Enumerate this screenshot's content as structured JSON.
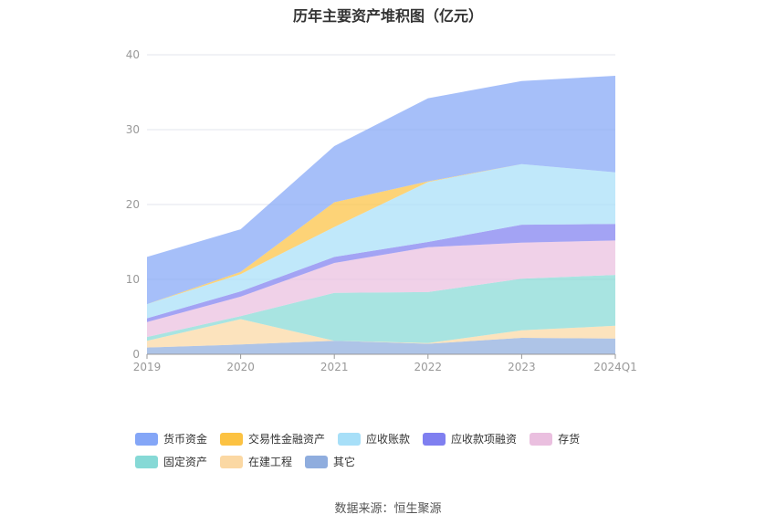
{
  "title": "历年主要资产堆积图（亿元）",
  "source": "数据来源：恒生聚源",
  "chart_data": {
    "type": "area",
    "stacked": true,
    "categories": [
      "2019",
      "2020",
      "2021",
      "2022",
      "2023",
      "2024Q1"
    ],
    "ylim": [
      0,
      40
    ],
    "yticks": [
      0,
      10,
      20,
      30,
      40
    ],
    "grid": true,
    "legend_position": "bottom",
    "series": [
      {
        "name": "其它",
        "color": "#8fadde",
        "values": [
          0.9,
          1.3,
          1.8,
          1.4,
          2.2,
          2.1
        ]
      },
      {
        "name": "在建工程",
        "color": "#fbd8a3",
        "values": [
          0.9,
          3.4,
          0.0,
          0.1,
          1.0,
          1.7
        ]
      },
      {
        "name": "固定资产",
        "color": "#86d9d6",
        "values": [
          0.5,
          0.4,
          6.4,
          6.8,
          6.9,
          6.8
        ]
      },
      {
        "name": "存货",
        "color": "#eabfdf",
        "values": [
          2.0,
          2.6,
          4.0,
          6.0,
          4.8,
          4.6
        ]
      },
      {
        "name": "应收款项融资",
        "color": "#7f7ff0",
        "values": [
          0.5,
          0.7,
          0.8,
          0.7,
          2.4,
          2.2
        ]
      },
      {
        "name": "应收账款",
        "color": "#a7dff8",
        "values": [
          1.9,
          2.3,
          4.0,
          8.0,
          8.1,
          6.9
        ]
      },
      {
        "name": "交易性金融资产",
        "color": "#fcc242",
        "values": [
          0.0,
          0.3,
          3.3,
          0.1,
          0.0,
          0.0
        ]
      },
      {
        "name": "货币资金",
        "color": "#84a6f7",
        "values": [
          6.3,
          5.7,
          7.5,
          11.1,
          11.1,
          12.9
        ]
      }
    ]
  }
}
